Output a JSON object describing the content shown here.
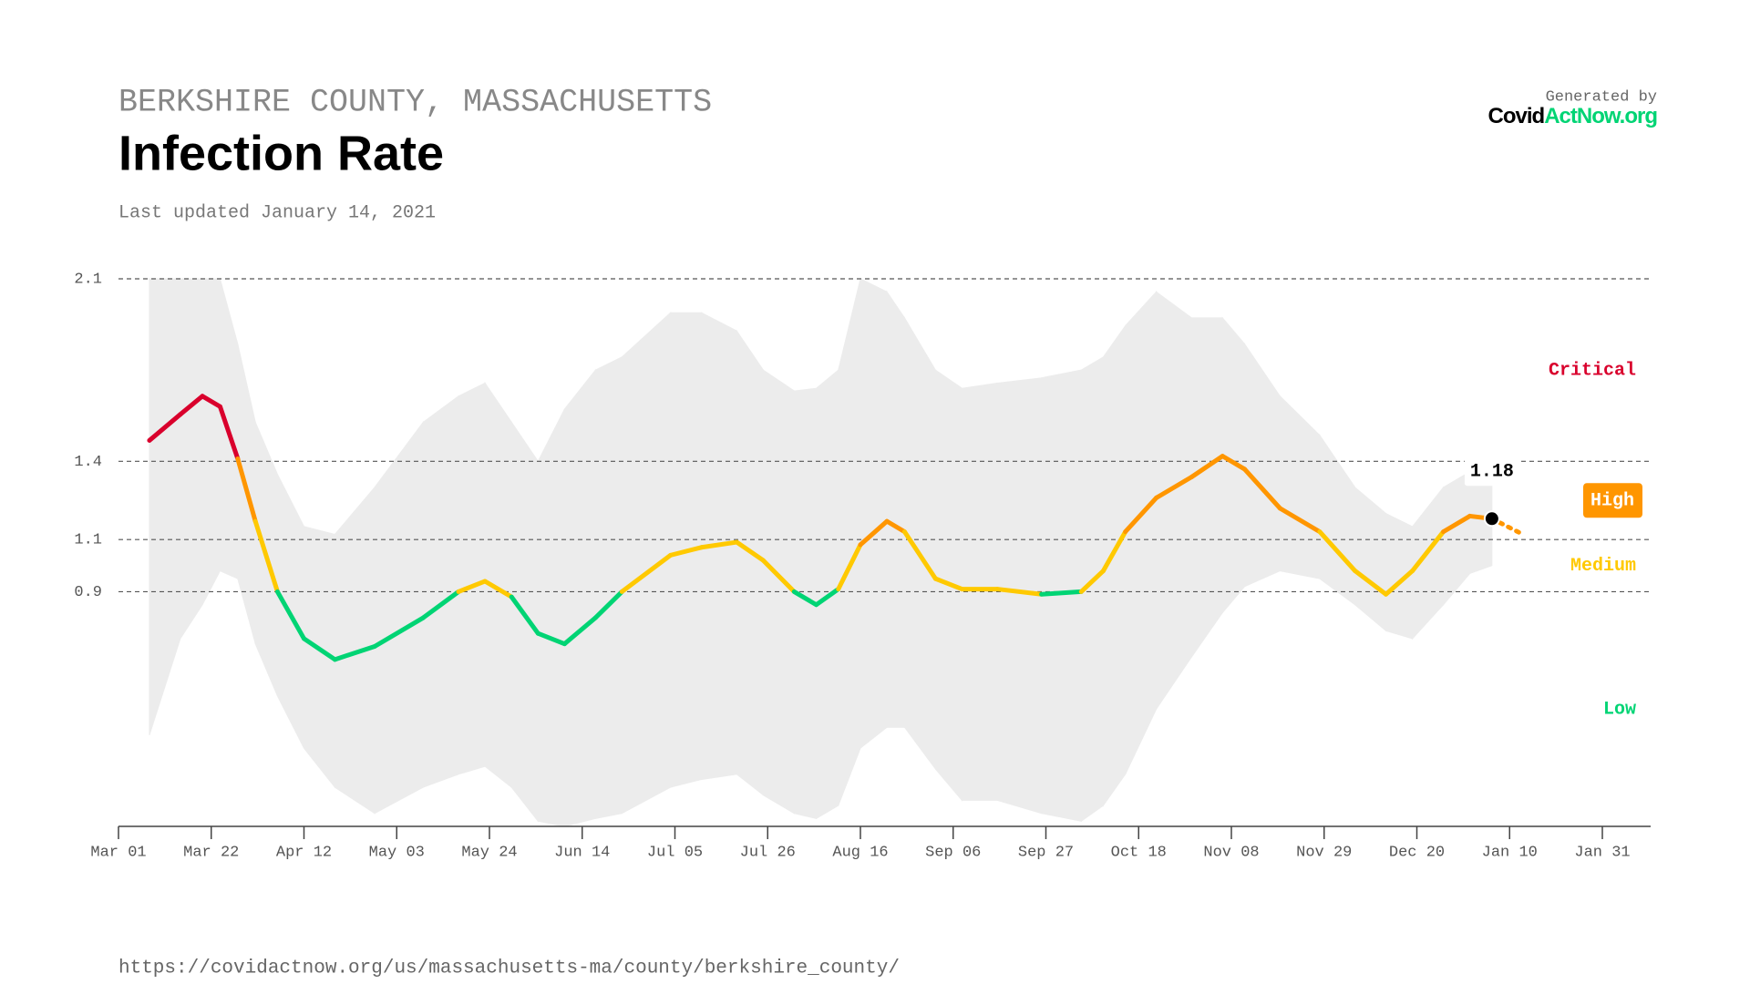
{
  "chart_data": {
    "type": "line",
    "subtitle": "BERKSHIRE COUNTY, MASSACHUSETTS",
    "title": "Infection Rate",
    "updated": "Last updated January 14, 2021",
    "generated_by": "Generated by",
    "logo_parts": [
      "Covid",
      "ActNow.org"
    ],
    "url": "https://covidactnow.org/us/massachusetts-ma/county/berkshire_county/",
    "x": [
      "Mar 08",
      "Mar 15",
      "Mar 20",
      "Mar 24",
      "Mar 28",
      "Apr 01",
      "Apr 06",
      "Apr 12",
      "Apr 19",
      "Apr 28",
      "May 09",
      "May 17",
      "May 23",
      "May 29",
      "Jun 04",
      "Jun 10",
      "Jun 17",
      "Jun 23",
      "Jul 04",
      "Jul 11",
      "Jul 19",
      "Jul 25",
      "Aug 01",
      "Aug 06",
      "Aug 11",
      "Aug 16",
      "Aug 22",
      "Aug 26",
      "Sep 02",
      "Sep 08",
      "Sep 16",
      "Sep 26",
      "Oct 05",
      "Oct 10",
      "Oct 15",
      "Oct 22",
      "Oct 30",
      "Nov 06",
      "Nov 11",
      "Nov 19",
      "Nov 28",
      "Dec 06",
      "Dec 13",
      "Dec 19",
      "Dec 26",
      "Jan 01",
      "Jan 06"
    ],
    "values": [
      1.48,
      1.58,
      1.65,
      1.61,
      1.41,
      1.17,
      0.9,
      0.72,
      0.64,
      0.69,
      0.8,
      0.9,
      0.94,
      0.88,
      0.74,
      0.7,
      0.8,
      0.9,
      1.04,
      1.07,
      1.09,
      1.02,
      0.9,
      0.85,
      0.91,
      1.08,
      1.17,
      1.13,
      0.95,
      0.91,
      0.91,
      0.89,
      0.9,
      0.98,
      1.13,
      1.26,
      1.34,
      1.42,
      1.37,
      1.22,
      1.13,
      0.98,
      0.89,
      0.98,
      1.13,
      1.19,
      1.18
    ],
    "band_upper": [
      2.1,
      2.1,
      2.1,
      2.1,
      1.85,
      1.55,
      1.35,
      1.15,
      1.12,
      1.3,
      1.55,
      1.65,
      1.7,
      1.55,
      1.4,
      1.6,
      1.75,
      1.8,
      1.97,
      1.97,
      1.9,
      1.75,
      1.67,
      1.68,
      1.75,
      2.1,
      2.05,
      1.95,
      1.75,
      1.68,
      1.7,
      1.72,
      1.75,
      1.8,
      1.92,
      2.05,
      1.95,
      1.95,
      1.85,
      1.65,
      1.5,
      1.3,
      1.2,
      1.15,
      1.3,
      1.36,
      1.38
    ],
    "band_lower": [
      0.35,
      0.72,
      0.85,
      0.98,
      0.95,
      0.7,
      0.5,
      0.3,
      0.15,
      0.05,
      0.15,
      0.2,
      0.23,
      0.15,
      0.02,
      0.0,
      0.03,
      0.05,
      0.15,
      0.18,
      0.2,
      0.12,
      0.05,
      0.03,
      0.08,
      0.3,
      0.38,
      0.38,
      0.22,
      0.1,
      0.1,
      0.05,
      0.02,
      0.08,
      0.2,
      0.45,
      0.65,
      0.82,
      0.92,
      0.98,
      0.95,
      0.85,
      0.75,
      0.72,
      0.85,
      0.97,
      1.0
    ],
    "projection": {
      "x": [
        "Jan 06",
        "Jan 13"
      ],
      "values": [
        1.18,
        1.12
      ]
    },
    "zones": [
      {
        "name": "Low",
        "min": 0,
        "max": 0.9,
        "color": "#00d474"
      },
      {
        "name": "Medium",
        "min": 0.9,
        "max": 1.1,
        "color": "#ffc900"
      },
      {
        "name": "High",
        "min": 1.1,
        "max": 1.4,
        "color": "#ff9600"
      },
      {
        "name": "Critical",
        "min": 1.4,
        "max": 2.1,
        "color": "#d9002c"
      }
    ],
    "xlim": [
      "Mar 01",
      "Jan 31"
    ],
    "xticks": [
      "Mar 01",
      "Mar 22",
      "Apr 12",
      "May 03",
      "May 24",
      "Jun 14",
      "Jul 05",
      "Jul 26",
      "Aug 16",
      "Sep 06",
      "Sep 27",
      "Oct 18",
      "Nov 08",
      "Nov 29",
      "Dec 20",
      "Jan 10",
      "Jan 31"
    ],
    "ylim": [
      0,
      2.1
    ],
    "yticks": [
      0.9,
      1.1,
      1.4,
      2.1
    ],
    "grid": true
  }
}
